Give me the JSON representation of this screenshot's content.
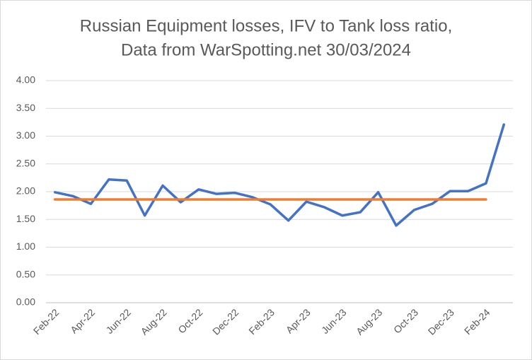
{
  "chart_data": {
    "type": "line",
    "title": [
      "Russian Equipment losses, IFV to Tank loss ratio,",
      "Data from WarSpotting.net 30/03/2024"
    ],
    "categories": [
      "Feb-22",
      null,
      "Apr-22",
      null,
      "Jun-22",
      null,
      "Aug-22",
      null,
      "Oct-22",
      null,
      "Dec-22",
      null,
      "Feb-23",
      null,
      "Apr-23",
      null,
      "Jun-23",
      null,
      "Aug-23",
      null,
      "Oct-23",
      null,
      "Dec-23",
      null,
      "Feb-24",
      null
    ],
    "series": [
      {
        "color": "#4472c4",
        "values": [
          1.99,
          1.92,
          1.78,
          2.22,
          2.2,
          1.57,
          2.11,
          1.81,
          2.04,
          1.96,
          1.98,
          1.9,
          1.77,
          1.48,
          1.82,
          1.72,
          1.57,
          1.63,
          1.99,
          1.39,
          1.67,
          1.78,
          2.01,
          2.01,
          2.15,
          3.21
        ]
      },
      {
        "color": "#ed7d31",
        "values": [
          1.86,
          1.86,
          1.86,
          1.86,
          1.86,
          1.86,
          1.86,
          1.86,
          1.86,
          1.86,
          1.86,
          1.86,
          1.86,
          1.86,
          1.86,
          1.86,
          1.86,
          1.86,
          1.86,
          1.86,
          1.86,
          1.86,
          1.86,
          1.86,
          1.86,
          null
        ]
      }
    ],
    "ylim": [
      0,
      4
    ],
    "yticks": [
      {
        "value": 0,
        "label": "0.00"
      },
      {
        "value": 0.5,
        "label": "0.50"
      },
      {
        "value": 1,
        "label": "1.00"
      },
      {
        "value": 1.5,
        "label": "1.50"
      },
      {
        "value": 2,
        "label": "2.00"
      },
      {
        "value": 2.5,
        "label": "2.50"
      },
      {
        "value": 3,
        "label": "3.00"
      },
      {
        "value": 3.5,
        "label": "3.50"
      },
      {
        "value": 4,
        "label": "4.00"
      }
    ],
    "grid": true
  }
}
